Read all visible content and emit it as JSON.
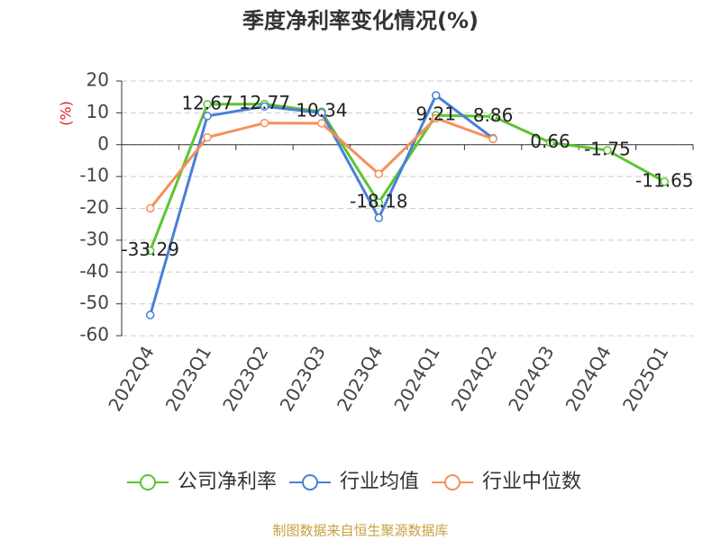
{
  "chart_data": {
    "type": "line",
    "title": "季度净利率变化情况(%)",
    "y_label": "(%)",
    "source": "制图数据来自恒生聚源数据库",
    "categories": [
      "2022Q4",
      "2023Q1",
      "2023Q2",
      "2023Q3",
      "2023Q4",
      "2024Q1",
      "2024Q2",
      "2024Q3",
      "2024Q4",
      "2025Q1"
    ],
    "series": [
      {
        "name": "公司净利率",
        "color": "#5cc531",
        "values": [
          -33.29,
          12.67,
          12.77,
          10.34,
          -18.18,
          9.21,
          8.86,
          0.66,
          -1.75,
          -11.65
        ],
        "data_labels": true
      },
      {
        "name": "行业均值",
        "color": "#4a7fd8",
        "values": [
          -53.5,
          9,
          12,
          10,
          -23,
          15.5,
          2,
          null,
          null,
          null
        ]
      },
      {
        "name": "行业中位数",
        "color": "#f5905a",
        "values": [
          -20,
          2.3,
          6.8,
          6.7,
          -9.2,
          8.3,
          1.8,
          null,
          null,
          null
        ]
      }
    ],
    "ylim": [
      -60,
      20
    ],
    "yticks": [
      -60,
      -50,
      -40,
      -30,
      -20,
      -10,
      0,
      10,
      20
    ],
    "grid": true
  }
}
